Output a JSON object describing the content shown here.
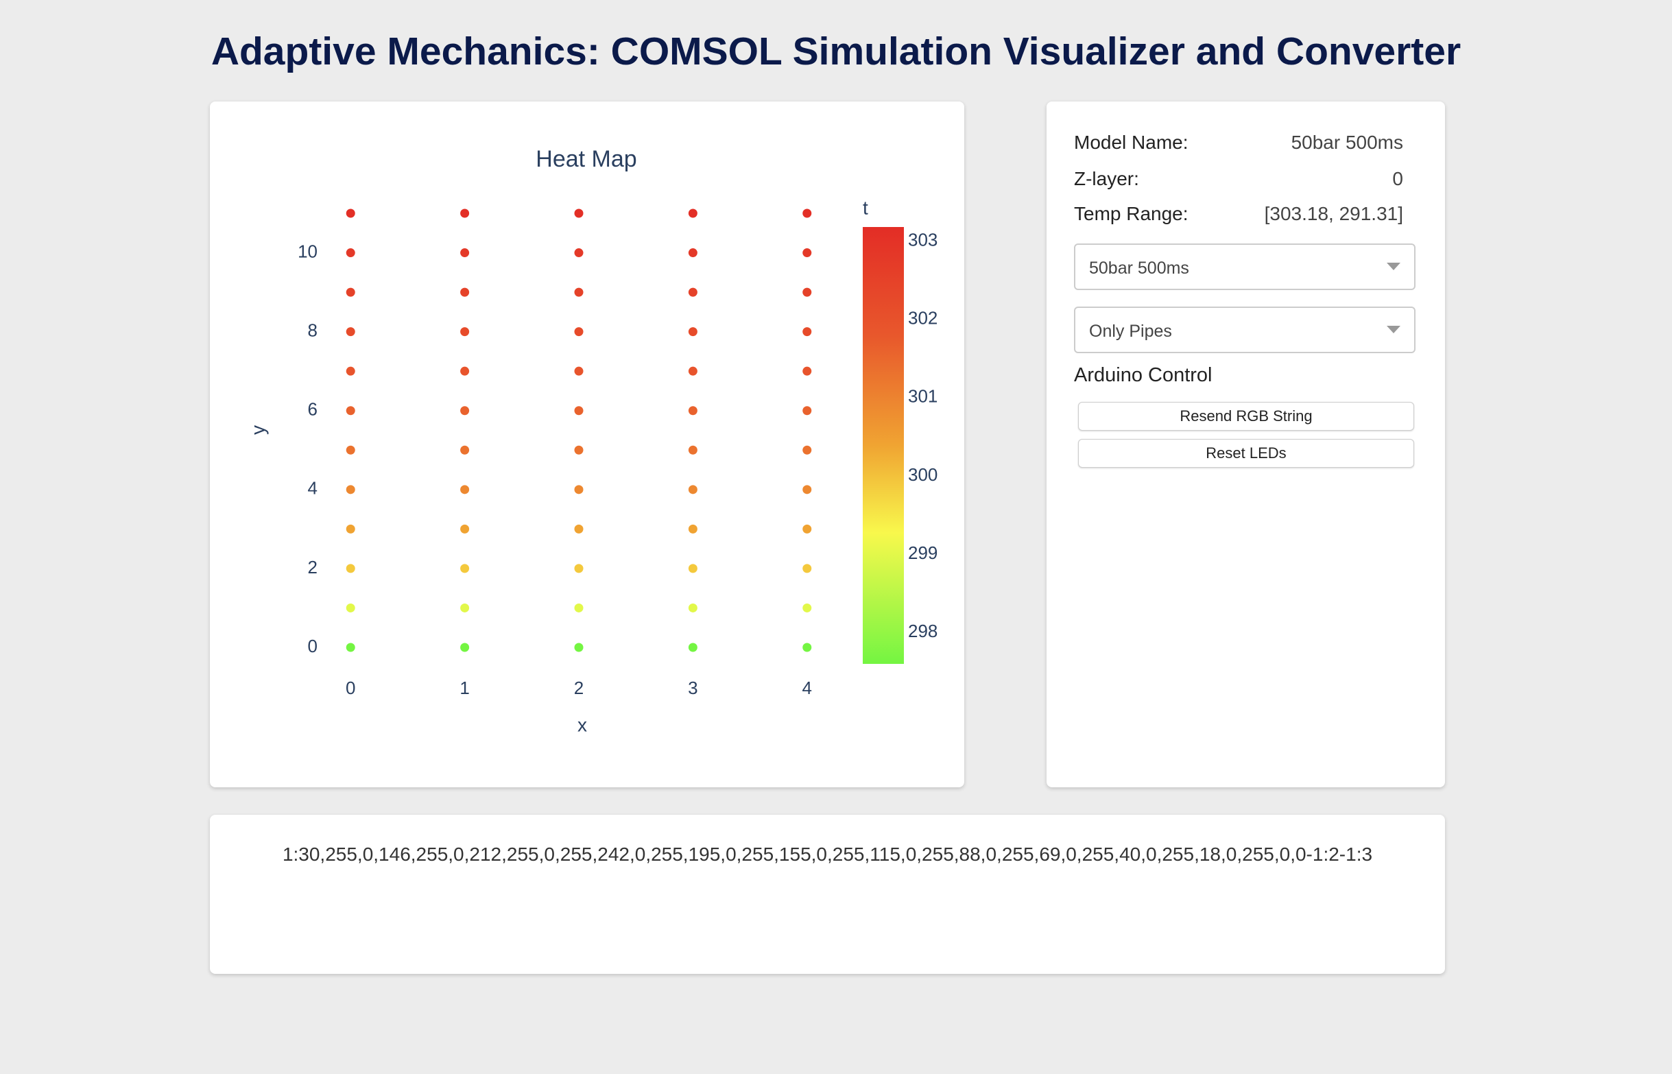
{
  "header": {
    "title": "Adaptive Mechanics: COMSOL Simulation Visualizer and Converter"
  },
  "chart_data": {
    "type": "scatter",
    "title": "Heat Map",
    "x_label": "x",
    "y_label": "y",
    "x": [
      0,
      1,
      2,
      3,
      4,
      0,
      1,
      2,
      3,
      4,
      0,
      1,
      2,
      3,
      4,
      0,
      1,
      2,
      3,
      4,
      0,
      1,
      2,
      3,
      4,
      0,
      1,
      2,
      3,
      4,
      0,
      1,
      2,
      3,
      4,
      0,
      1,
      2,
      3,
      4,
      0,
      1,
      2,
      3,
      4,
      0,
      1,
      2,
      3,
      4,
      0,
      1,
      2,
      3,
      4,
      0,
      1,
      2,
      3,
      4
    ],
    "y": [
      0,
      0,
      0,
      0,
      0,
      1,
      1,
      1,
      1,
      1,
      2,
      2,
      2,
      2,
      2,
      3,
      3,
      3,
      3,
      3,
      4,
      4,
      4,
      4,
      4,
      5,
      5,
      5,
      5,
      5,
      6,
      6,
      6,
      6,
      6,
      7,
      7,
      7,
      7,
      7,
      8,
      8,
      8,
      8,
      8,
      9,
      9,
      9,
      9,
      9,
      10,
      10,
      10,
      10,
      10,
      11,
      11,
      11,
      11,
      11
    ],
    "t": [
      297.6,
      297.6,
      297.6,
      297.6,
      297.6,
      299.0,
      299.0,
      299.0,
      299.0,
      299.0,
      299.9,
      299.9,
      299.9,
      299.9,
      299.9,
      300.4,
      300.4,
      300.4,
      300.4,
      300.4,
      300.9,
      300.9,
      300.9,
      300.9,
      300.9,
      301.3,
      301.3,
      301.3,
      301.3,
      301.3,
      301.6,
      301.6,
      301.6,
      301.6,
      301.6,
      301.9,
      301.9,
      301.9,
      301.9,
      301.9,
      302.2,
      302.2,
      302.2,
      302.2,
      302.2,
      302.5,
      302.5,
      302.5,
      302.5,
      302.5,
      302.8,
      302.8,
      302.8,
      302.8,
      302.8,
      303.1,
      303.1,
      303.1,
      303.1,
      303.1
    ],
    "xlim": [
      -0.35,
      4.35
    ],
    "ylim": [
      -0.4,
      11.4
    ],
    "xticks": [
      0,
      1,
      2,
      3,
      4
    ],
    "yticks": [
      0,
      2,
      4,
      6,
      8,
      10
    ],
    "colorbar": {
      "title": "t",
      "range": [
        297.6,
        303.18
      ],
      "ticks": [
        298,
        299,
        300,
        301,
        302,
        303
      ],
      "colorscale": [
        [
          0,
          "#74f542"
        ],
        [
          0.3,
          "#f8f84c"
        ],
        [
          0.5,
          "#f0a432"
        ],
        [
          0.75,
          "#e8582c"
        ],
        [
          1,
          "#e32d26"
        ]
      ]
    }
  },
  "panel": {
    "fields": [
      {
        "label": "Model Name:",
        "value": "50bar 500ms"
      },
      {
        "label": "Z-layer:",
        "value": "0"
      },
      {
        "label": "Temp Range:",
        "value": "[303.18, 291.31]"
      }
    ],
    "dropdowns": [
      "50bar 500ms",
      "Only Pipes"
    ],
    "section": "Arduino Control",
    "buttons": [
      "Resend RGB String",
      "Reset LEDs"
    ]
  },
  "output": {
    "text": "1:30,255,0,146,255,0,212,255,0,255,242,0,255,195,0,255,155,0,255,115,0,255,88,0,255,69,0,255,40,0,255,18,0,255,0,0-1:2-1:3"
  }
}
